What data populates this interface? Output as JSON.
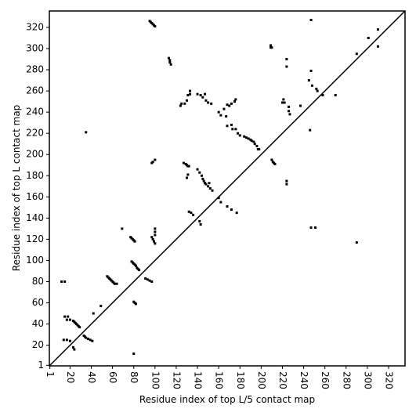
{
  "chart_data": {
    "type": "scatter",
    "xlabel": "Residue index of top L/5 contact map",
    "ylabel": "Residue index of top L contact map",
    "xlim": [
      0.5,
      335.5
    ],
    "ylim": [
      0.5,
      335.5
    ],
    "xticks": [
      1,
      20,
      40,
      60,
      80,
      100,
      120,
      140,
      160,
      180,
      200,
      220,
      240,
      260,
      280,
      300,
      320
    ],
    "yticks": [
      1,
      20,
      40,
      60,
      80,
      100,
      120,
      140,
      160,
      180,
      200,
      220,
      240,
      260,
      280,
      300,
      320
    ],
    "diagonal": true,
    "color": "#000000",
    "x": [
      95,
      96,
      97,
      98,
      99,
      100,
      113,
      114,
      114,
      115,
      209,
      209,
      210,
      224,
      224,
      247,
      245,
      248,
      252,
      253,
      258,
      301,
      310,
      310,
      290,
      247,
      124,
      125,
      128,
      130,
      131,
      133,
      133,
      140,
      143,
      145,
      147,
      148,
      150,
      153,
      160,
      162,
      165,
      168,
      170,
      172,
      175,
      176,
      167,
      168,
      172,
      173,
      176,
      178,
      180,
      184,
      186,
      188,
      190,
      191,
      193,
      194,
      196,
      197,
      198,
      221,
      222,
      226,
      226,
      227,
      220,
      237,
      246,
      69,
      35,
      12,
      15,
      15,
      18,
      17,
      20,
      23,
      24,
      25,
      26,
      27,
      28,
      29,
      14,
      17,
      20,
      23,
      24,
      33,
      34,
      35,
      37,
      39,
      41,
      42,
      49,
      55,
      56,
      57,
      58,
      59,
      60,
      61,
      62,
      64,
      78,
      79,
      80,
      81,
      82,
      83,
      84,
      85,
      77,
      78,
      79,
      80,
      81,
      80,
      81,
      82,
      80,
      91,
      93,
      95,
      97,
      97,
      98,
      99,
      100,
      100,
      100,
      100,
      97,
      98,
      100,
      127,
      129,
      130,
      131,
      132,
      130,
      131,
      132,
      134,
      136,
      140,
      142,
      144,
      145,
      146,
      147,
      148,
      150,
      151,
      152,
      154,
      142,
      143,
      160,
      162,
      168,
      172,
      177,
      210,
      211,
      212,
      213,
      224,
      224,
      247,
      251,
      290,
      270
    ],
    "y": [
      326,
      325,
      324,
      323,
      322,
      321,
      291,
      289,
      287,
      285,
      303,
      301,
      301,
      290,
      283,
      279,
      270,
      265,
      262,
      260,
      256,
      310,
      318,
      302,
      295,
      327,
      246,
      248,
      248,
      251,
      256,
      260,
      257,
      257,
      256,
      254,
      257,
      251,
      249,
      248,
      240,
      237,
      243,
      247,
      246,
      248,
      250,
      252,
      236,
      227,
      228,
      224,
      224,
      220,
      218,
      217,
      216,
      215,
      214,
      213,
      212,
      210,
      208,
      205,
      205,
      252,
      249,
      245,
      241,
      238,
      249,
      246,
      223,
      130,
      221,
      80,
      80,
      47,
      47,
      44,
      44,
      43,
      42,
      41,
      40,
      39,
      38,
      37,
      25,
      25,
      24,
      18,
      16,
      29,
      28,
      27,
      26,
      25,
      24,
      50,
      57,
      85,
      84,
      83,
      82,
      81,
      80,
      79,
      78,
      78,
      99,
      98,
      97,
      96,
      95,
      93,
      92,
      91,
      122,
      121,
      120,
      119,
      118,
      61,
      60,
      59,
      12,
      83,
      82,
      81,
      80,
      122,
      120,
      118,
      116,
      130,
      127,
      124,
      192,
      193,
      195,
      192,
      191,
      190,
      189,
      189,
      178,
      181,
      146,
      145,
      143,
      186,
      183,
      180,
      177,
      175,
      173,
      172,
      170,
      173,
      168,
      166,
      137,
      134,
      159,
      155,
      151,
      148,
      145,
      195,
      193,
      192,
      191,
      175,
      172,
      131,
      131,
      117,
      256
    ]
  }
}
